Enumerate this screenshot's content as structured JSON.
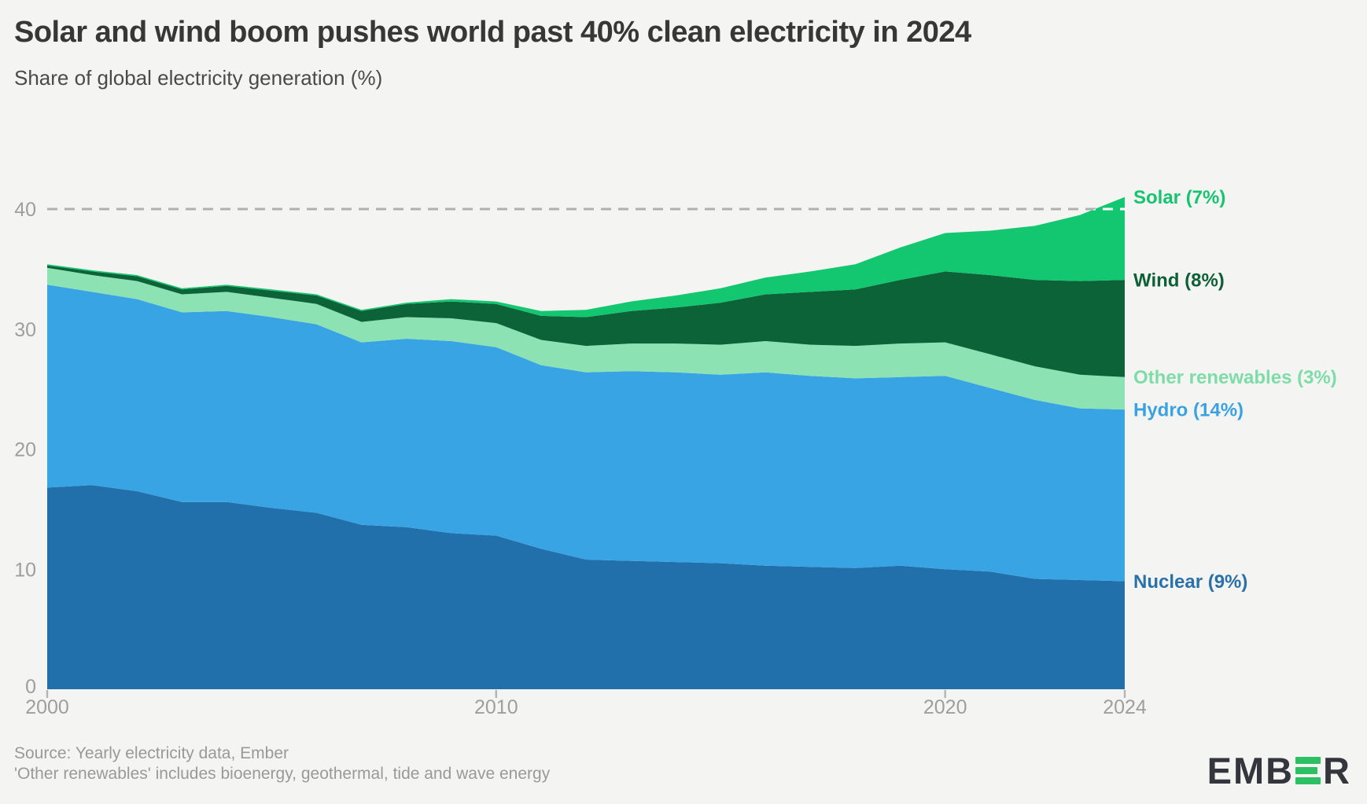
{
  "header": {
    "title": "Solar and wind boom pushes world past 40% clean electricity in 2024",
    "subtitle": "Share of global electricity generation (%)"
  },
  "footer": {
    "source_line1": "Source: Yearly electricity data, Ember",
    "source_line2": "'Other renewables' includes bioenergy, geothermal, tide and wave energy",
    "logo_text_left": "EMB",
    "logo_text_right": "R"
  },
  "colors": {
    "background": "#f4f5f3",
    "title": "#373737",
    "subtitle": "#4a4a4a",
    "axis_label": "#9e9e9e",
    "tick_mark": "#b5b5b5",
    "dashed_gridline": "#b0b0b0",
    "dashed_gridline_over_area": "#ffffff",
    "source_text": "#999999",
    "logo_dark": "#35353d",
    "logo_green": "#2bc162"
  },
  "chart_data": {
    "type": "area",
    "stacked": true,
    "title": "Solar and wind boom pushes world past 40% clean electricity in 2024",
    "subtitle": "Share of global electricity generation (%)",
    "xlabel": "",
    "ylabel": "Share of global electricity generation (%)",
    "xlim": [
      2000,
      2024
    ],
    "ylim": [
      0,
      42
    ],
    "xticks": [
      2000,
      2010,
      2020,
      2024
    ],
    "yticks": [
      0,
      10,
      20,
      30,
      40
    ],
    "gridline": {
      "y": 40,
      "style": "dashed"
    },
    "legend_position": "right-edge-labels",
    "x": [
      2000,
      2001,
      2002,
      2003,
      2004,
      2005,
      2006,
      2007,
      2008,
      2009,
      2010,
      2011,
      2012,
      2013,
      2014,
      2015,
      2016,
      2017,
      2018,
      2019,
      2020,
      2021,
      2022,
      2023,
      2024
    ],
    "series": [
      {
        "name": "nuclear",
        "label": "Nuclear (9%)",
        "color": "#2170ac",
        "label_color": "#2a70a9",
        "values": [
          16.8,
          17.0,
          16.5,
          15.6,
          15.6,
          15.1,
          14.7,
          13.7,
          13.5,
          13.0,
          12.8,
          11.7,
          10.8,
          10.7,
          10.6,
          10.5,
          10.3,
          10.2,
          10.1,
          10.3,
          10.0,
          9.8,
          9.2,
          9.1,
          9.0
        ]
      },
      {
        "name": "hydro",
        "label": "Hydro (14%)",
        "color": "#39a4e4",
        "label_color": "#3aa2e2",
        "values": [
          16.9,
          16.1,
          16.0,
          15.8,
          15.9,
          15.9,
          15.7,
          15.2,
          15.7,
          16.0,
          15.7,
          15.3,
          15.6,
          15.8,
          15.8,
          15.7,
          16.1,
          15.9,
          15.8,
          15.7,
          16.1,
          15.3,
          14.9,
          14.3,
          14.3
        ]
      },
      {
        "name": "other-renewables",
        "label": "Other renewables (3%)",
        "color": "#8de2b3",
        "label_color": "#7edca8",
        "values": [
          1.4,
          1.4,
          1.5,
          1.5,
          1.6,
          1.6,
          1.7,
          1.7,
          1.8,
          1.9,
          2.0,
          2.1,
          2.2,
          2.3,
          2.4,
          2.5,
          2.6,
          2.6,
          2.7,
          2.8,
          2.8,
          2.8,
          2.8,
          2.8,
          2.7
        ]
      },
      {
        "name": "wind",
        "label": "Wind (8%)",
        "color": "#0d6338",
        "label_color": "#0d6036",
        "values": [
          0.2,
          0.3,
          0.4,
          0.4,
          0.5,
          0.6,
          0.7,
          0.9,
          1.1,
          1.4,
          1.6,
          2.0,
          2.4,
          2.7,
          3.0,
          3.5,
          3.9,
          4.4,
          4.7,
          5.3,
          5.9,
          6.6,
          7.2,
          7.8,
          8.1
        ]
      },
      {
        "name": "solar",
        "label": "Solar (7%)",
        "color": "#13c770",
        "label_color": "#14c46e",
        "values": [
          0.1,
          0.1,
          0.1,
          0.1,
          0.1,
          0.1,
          0.1,
          0.1,
          0.1,
          0.2,
          0.2,
          0.4,
          0.6,
          0.8,
          1.0,
          1.2,
          1.4,
          1.7,
          2.1,
          2.7,
          3.2,
          3.7,
          4.5,
          5.5,
          6.9
        ]
      }
    ]
  }
}
